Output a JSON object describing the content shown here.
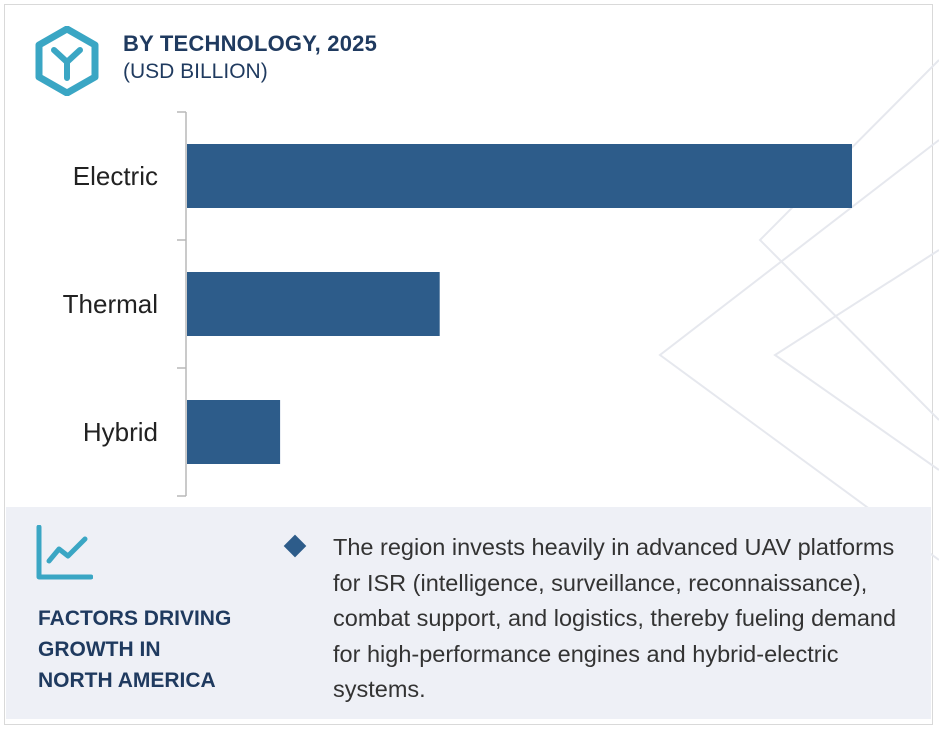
{
  "header": {
    "title": "BY TECHNOLOGY, 2025",
    "subtitle": "(USD BILLION)",
    "logo_icon": "hexagon-y-logo-icon"
  },
  "chart_data": {
    "type": "bar",
    "orientation": "horizontal",
    "title": "BY TECHNOLOGY, 2025",
    "subtitle": "(USD BILLION)",
    "categories": [
      "Electric",
      "Thermal",
      "Hybrid"
    ],
    "values": [
      100,
      38,
      14
    ],
    "value_axis_visible": false,
    "xlim": [
      0,
      100
    ],
    "grid": false,
    "bar_color": "#2d5c8a"
  },
  "factors": {
    "icon": "trend-line-chart-icon",
    "heading": "FACTORS DRIVING\nGROWTH IN\nNORTH AMERICA",
    "description": "The region invests heavily in advanced UAV platforms for ISR (intelligence, surveillance, reconnaissance), combat support, and logistics, thereby fueling demand for high-performance engines and hybrid-electric systems."
  },
  "colors": {
    "accent": "#3aa6c4",
    "bar": "#2d5c8a",
    "heading": "#1f3a5f",
    "panel": "#eef0f6"
  }
}
